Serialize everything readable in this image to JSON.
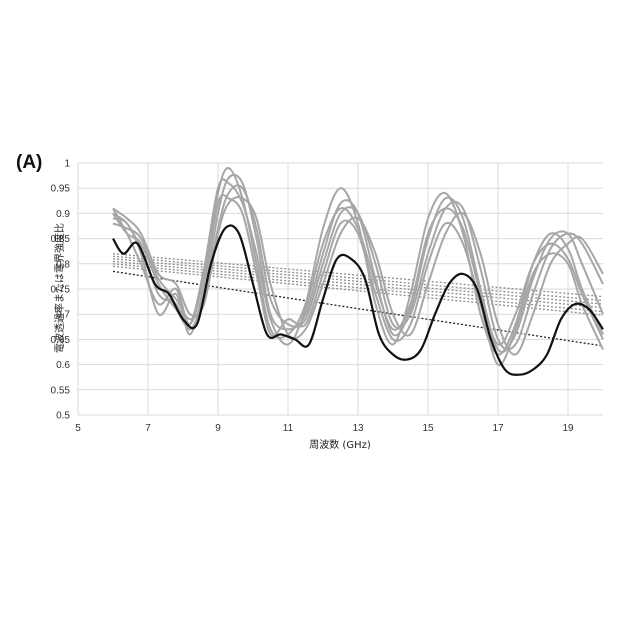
{
  "panel_label": "(A)",
  "chart_data": {
    "type": "line",
    "xlabel": "周波数 (GHz)",
    "ylabel": "電波透過率または電界強度比",
    "xlim": [
      5,
      20
    ],
    "ylim": [
      0.5,
      1.0
    ],
    "xticks": [
      5,
      7,
      9,
      11,
      13,
      15,
      17,
      19
    ],
    "yticks": [
      0.5,
      0.55,
      0.6,
      0.65,
      0.7,
      0.75,
      0.8,
      0.85,
      0.9,
      0.95,
      1
    ],
    "grid": true,
    "legend": "none",
    "colors": {
      "gray": "#a6a6a6",
      "black": "#111111",
      "grid": "#d9d9d9"
    },
    "series": [
      {
        "style": "gray",
        "x": [
          6,
          6.4,
          6.8,
          7.3,
          7.8,
          8.2,
          8.6,
          9.0,
          9.3,
          9.7,
          10.1,
          10.5,
          11.0,
          11.5,
          12.0,
          12.5,
          13.0,
          13.5,
          14.0,
          14.5,
          15.0,
          15.5,
          16.0,
          16.5,
          17.0,
          17.5,
          18.0,
          18.5,
          19.0,
          19.4,
          20
        ],
        "y": [
          0.91,
          0.86,
          0.8,
          0.72,
          0.75,
          0.68,
          0.78,
          0.94,
          0.99,
          0.93,
          0.8,
          0.67,
          0.66,
          0.72,
          0.87,
          0.95,
          0.88,
          0.72,
          0.64,
          0.74,
          0.89,
          0.94,
          0.86,
          0.7,
          0.62,
          0.68,
          0.8,
          0.86,
          0.83,
          0.75,
          0.66
        ]
      },
      {
        "style": "gray",
        "x": [
          6,
          6.4,
          6.8,
          7.3,
          7.8,
          8.2,
          8.6,
          9.0,
          9.3,
          9.7,
          10.1,
          10.5,
          11.0,
          11.5,
          12.0,
          12.5,
          13.0,
          13.5,
          14.0,
          14.5,
          15.0,
          15.5,
          16.0,
          16.5,
          17.0,
          17.5,
          18.0,
          18.5,
          19.0,
          19.4,
          20
        ],
        "y": [
          0.9,
          0.88,
          0.83,
          0.74,
          0.72,
          0.67,
          0.74,
          0.9,
          0.97,
          0.96,
          0.85,
          0.7,
          0.67,
          0.7,
          0.82,
          0.92,
          0.9,
          0.77,
          0.66,
          0.71,
          0.85,
          0.93,
          0.89,
          0.75,
          0.63,
          0.66,
          0.77,
          0.85,
          0.86,
          0.8,
          0.7
        ]
      },
      {
        "style": "gray",
        "x": [
          6,
          6.4,
          6.8,
          7.3,
          7.8,
          8.2,
          8.6,
          9.0,
          9.3,
          9.7,
          10.1,
          10.5,
          11.0,
          11.5,
          12.0,
          12.5,
          13.0,
          13.5,
          14.0,
          14.5,
          15.0,
          15.5,
          16.0,
          16.5,
          17.0,
          17.5,
          18.0,
          18.5,
          19.0,
          19.4,
          20
        ],
        "y": [
          0.88,
          0.87,
          0.85,
          0.77,
          0.73,
          0.69,
          0.73,
          0.87,
          0.94,
          0.95,
          0.87,
          0.73,
          0.68,
          0.69,
          0.8,
          0.9,
          0.9,
          0.8,
          0.68,
          0.7,
          0.82,
          0.91,
          0.91,
          0.79,
          0.65,
          0.64,
          0.74,
          0.83,
          0.86,
          0.84,
          0.76
        ]
      },
      {
        "style": "gray",
        "x": [
          6,
          6.4,
          6.8,
          7.3,
          7.8,
          8.2,
          8.6,
          9.0,
          9.3,
          9.7,
          10.1,
          10.5,
          11.0,
          11.5,
          12.0,
          12.5,
          13.0,
          13.5,
          14.0,
          14.5,
          15.0,
          15.5,
          16.0,
          16.5,
          17.0,
          17.5,
          18.0,
          18.5,
          19.0,
          19.4,
          20
        ],
        "y": [
          0.89,
          0.88,
          0.82,
          0.7,
          0.74,
          0.66,
          0.76,
          0.92,
          0.93,
          0.9,
          0.78,
          0.66,
          0.69,
          0.68,
          0.78,
          0.88,
          0.86,
          0.74,
          0.65,
          0.68,
          0.8,
          0.88,
          0.84,
          0.72,
          0.6,
          0.67,
          0.78,
          0.82,
          0.8,
          0.72,
          0.63
        ]
      },
      {
        "style": "gray",
        "x": [
          6,
          6.4,
          6.8,
          7.3,
          7.8,
          8.2,
          8.6,
          9.0,
          9.3,
          9.7,
          10.1,
          10.5,
          11.0,
          11.5,
          12.0,
          12.5,
          13.0,
          13.5,
          14.0,
          14.5,
          15.0,
          15.5,
          16.0,
          16.5,
          17.0,
          17.5,
          18.0,
          18.5,
          19.0,
          19.4,
          20
        ],
        "y": [
          0.9,
          0.86,
          0.84,
          0.76,
          0.71,
          0.68,
          0.79,
          0.95,
          0.96,
          0.92,
          0.82,
          0.69,
          0.64,
          0.71,
          0.84,
          0.91,
          0.87,
          0.76,
          0.67,
          0.72,
          0.86,
          0.91,
          0.87,
          0.74,
          0.64,
          0.7,
          0.8,
          0.84,
          0.81,
          0.74,
          0.65
        ]
      },
      {
        "style": "gray",
        "x": [
          6,
          6.4,
          6.8,
          7.3,
          7.8,
          8.2,
          8.6,
          9.0,
          9.3,
          9.7,
          10.1,
          10.5,
          11.0,
          11.5,
          12.0,
          12.5,
          13.0,
          13.5,
          14.0,
          14.5,
          15.0,
          15.5,
          16.0,
          16.5,
          17.0,
          17.5,
          18.0,
          18.5,
          19.0,
          19.4,
          20
        ],
        "y": [
          0.91,
          0.89,
          0.86,
          0.78,
          0.76,
          0.7,
          0.72,
          0.86,
          0.92,
          0.93,
          0.89,
          0.76,
          0.66,
          0.67,
          0.76,
          0.86,
          0.89,
          0.82,
          0.7,
          0.66,
          0.76,
          0.86,
          0.9,
          0.82,
          0.68,
          0.62,
          0.7,
          0.8,
          0.84,
          0.85,
          0.78
        ]
      },
      {
        "style": "black",
        "x": [
          6,
          6.3,
          6.7,
          7.2,
          7.6,
          8.0,
          8.4,
          8.8,
          9.2,
          9.6,
          10.0,
          10.4,
          10.8,
          11.2,
          11.6,
          12.0,
          12.4,
          12.8,
          13.2,
          13.6,
          14.0,
          14.4,
          14.8,
          15.2,
          15.6,
          16.0,
          16.4,
          16.8,
          17.2,
          17.6,
          18.0,
          18.4,
          18.8,
          19.2,
          19.6,
          20
        ],
        "y": [
          0.85,
          0.82,
          0.84,
          0.76,
          0.74,
          0.69,
          0.68,
          0.8,
          0.87,
          0.86,
          0.76,
          0.66,
          0.66,
          0.65,
          0.64,
          0.73,
          0.81,
          0.81,
          0.77,
          0.66,
          0.62,
          0.61,
          0.63,
          0.7,
          0.76,
          0.78,
          0.75,
          0.65,
          0.59,
          0.58,
          0.59,
          0.62,
          0.69,
          0.72,
          0.71,
          0.67
        ]
      },
      {
        "style": "trend-black",
        "x": [
          6,
          20
        ],
        "y": [
          0.785,
          0.637
        ]
      },
      {
        "style": "trend-gray",
        "x": [
          6,
          20
        ],
        "y": [
          0.795,
          0.698
        ]
      },
      {
        "style": "trend-gray",
        "x": [
          6,
          20
        ],
        "y": [
          0.8,
          0.705
        ]
      },
      {
        "style": "trend-gray",
        "x": [
          6,
          20
        ],
        "y": [
          0.805,
          0.713
        ]
      },
      {
        "style": "trend-gray",
        "x": [
          6,
          20
        ],
        "y": [
          0.81,
          0.72
        ]
      },
      {
        "style": "trend-gray",
        "x": [
          6,
          20
        ],
        "y": [
          0.815,
          0.727
        ]
      },
      {
        "style": "trend-gray",
        "x": [
          6,
          20
        ],
        "y": [
          0.82,
          0.735
        ]
      }
    ]
  }
}
